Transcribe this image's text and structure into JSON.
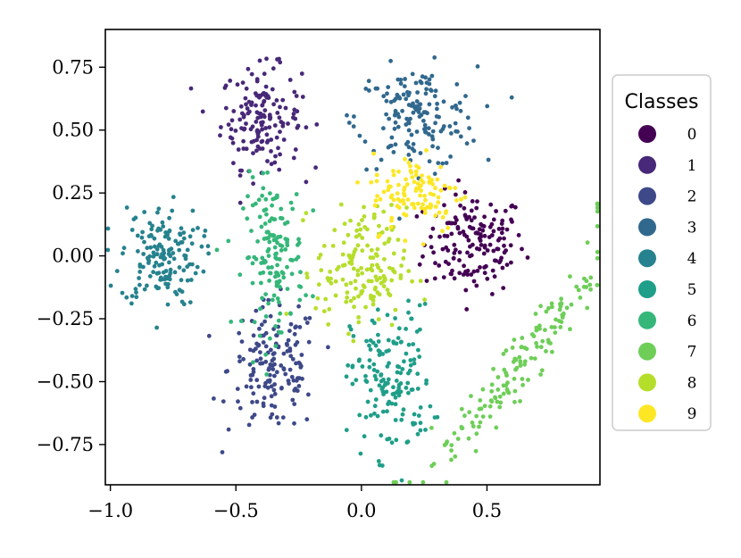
{
  "chart_data": {
    "type": "scatter",
    "title": "",
    "xlabel": "",
    "ylabel": "",
    "xlim": [
      -1.02,
      0.95
    ],
    "ylim": [
      -0.91,
      0.9
    ],
    "xticks": [
      -1.0,
      -0.5,
      0.0,
      0.5
    ],
    "xtick_labels": [
      "−1.0",
      "−0.5",
      "0.0",
      "0.5"
    ],
    "yticks": [
      0.75,
      0.5,
      0.25,
      0.0,
      -0.25,
      -0.5,
      -0.75
    ],
    "ytick_labels": [
      "0.75",
      "0.50",
      "0.25",
      "0.00",
      "−0.25",
      "−0.50",
      "−0.75"
    ],
    "grid": false,
    "legend": {
      "title": "Classes",
      "placement": "outside-right",
      "entries": [
        "0",
        "1",
        "2",
        "3",
        "4",
        "5",
        "6",
        "7",
        "8",
        "9"
      ]
    },
    "colors": [
      "#440154",
      "#482878",
      "#3e4989",
      "#31688e",
      "#26828e",
      "#1f9e89",
      "#35b779",
      "#6ece58",
      "#b5de2b",
      "#fde725"
    ],
    "clusters": [
      {
        "class": "0",
        "cx": 0.45,
        "cy": 0.05,
        "sx": 0.1,
        "sy": 0.1,
        "n": 160
      },
      {
        "class": "1",
        "cx": -0.4,
        "cy": 0.55,
        "sx": 0.08,
        "sy": 0.1,
        "n": 160
      },
      {
        "class": "2",
        "cx": -0.35,
        "cy": -0.45,
        "sx": 0.09,
        "sy": 0.13,
        "n": 160
      },
      {
        "class": "3",
        "cx": 0.22,
        "cy": 0.55,
        "sx": 0.12,
        "sy": 0.1,
        "n": 160
      },
      {
        "class": "4",
        "cx": -0.8,
        "cy": 0.0,
        "sx": 0.08,
        "sy": 0.1,
        "n": 160
      },
      {
        "class": "5",
        "cx": 0.12,
        "cy": -0.5,
        "sx": 0.08,
        "sy": 0.15,
        "n": 160
      },
      {
        "class": "6",
        "cx": -0.35,
        "cy": 0.0,
        "sx": 0.06,
        "sy": 0.15,
        "n": 150
      },
      {
        "class": "7",
        "cx": 0.62,
        "cy": -0.45,
        "sx": 0.15,
        "sy": 0.25,
        "n": 160
      },
      {
        "class": "8",
        "cx": 0.0,
        "cy": -0.05,
        "sx": 0.09,
        "sy": 0.12,
        "n": 160
      },
      {
        "class": "9",
        "cx": 0.22,
        "cy": 0.25,
        "sx": 0.09,
        "sy": 0.08,
        "n": 110
      }
    ]
  }
}
